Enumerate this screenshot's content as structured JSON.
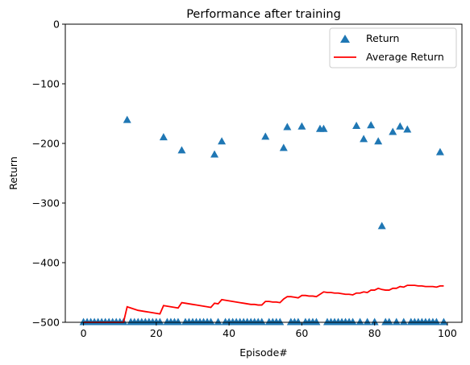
{
  "chart_data": {
    "type": "scatter",
    "title": "Performance after training",
    "xlabel": "Episode#",
    "ylabel": "Return",
    "xlim": [
      -5,
      104
    ],
    "ylim": [
      -500,
      0
    ],
    "xticks": [
      0,
      20,
      40,
      60,
      80,
      100
    ],
    "yticks": [
      -500,
      -400,
      -300,
      -200,
      -100,
      0
    ],
    "xtick_labels": [
      "0",
      "20",
      "40",
      "60",
      "80",
      "100"
    ],
    "ytick_labels": [
      "−500",
      "−400",
      "−300",
      "−200",
      "−100",
      "0"
    ],
    "grid": false,
    "legend_position": "top-right",
    "series": [
      {
        "name": "Return",
        "kind": "scatter",
        "marker": "triangle",
        "color": "#1f77b4",
        "x": [
          0,
          1,
          2,
          3,
          4,
          5,
          6,
          7,
          8,
          9,
          10,
          11,
          12,
          13,
          14,
          15,
          16,
          17,
          18,
          19,
          20,
          21,
          22,
          23,
          24,
          25,
          26,
          27,
          28,
          29,
          30,
          31,
          32,
          33,
          34,
          35,
          36,
          37,
          38,
          39,
          40,
          41,
          42,
          43,
          44,
          45,
          46,
          47,
          48,
          49,
          50,
          51,
          52,
          53,
          54,
          55,
          56,
          57,
          58,
          59,
          60,
          61,
          62,
          63,
          64,
          65,
          66,
          67,
          68,
          69,
          70,
          71,
          72,
          73,
          74,
          75,
          76,
          77,
          78,
          79,
          80,
          81,
          82,
          83,
          84,
          85,
          86,
          87,
          88,
          89,
          90,
          91,
          92,
          93,
          94,
          95,
          96,
          97,
          98,
          99
        ],
        "y": [
          -500,
          -500,
          -500,
          -500,
          -500,
          -500,
          -500,
          -500,
          -500,
          -500,
          -500,
          -500,
          -161,
          -500,
          -500,
          -500,
          -500,
          -500,
          -500,
          -500,
          -500,
          -500,
          -190,
          -500,
          -500,
          -500,
          -500,
          -212,
          -500,
          -500,
          -500,
          -500,
          -500,
          -500,
          -500,
          -500,
          -219,
          -500,
          -197,
          -500,
          -500,
          -500,
          -500,
          -500,
          -500,
          -500,
          -500,
          -500,
          -500,
          -500,
          -189,
          -500,
          -500,
          -500,
          -500,
          -208,
          -173,
          -500,
          -500,
          -500,
          -172,
          -500,
          -500,
          -500,
          -500,
          -176,
          -176,
          -500,
          -500,
          -500,
          -500,
          -500,
          -500,
          -500,
          -500,
          -171,
          -500,
          -193,
          -500,
          -170,
          -500,
          -197,
          -339,
          -500,
          -500,
          -181,
          -500,
          -172,
          -500,
          -177,
          -500,
          -500,
          -500,
          -500,
          -500,
          -500,
          -500,
          -500,
          -215,
          -500
        ]
      },
      {
        "name": "Average Return",
        "kind": "line",
        "color": "#ff0000",
        "x": [
          0,
          1,
          2,
          3,
          4,
          5,
          6,
          7,
          8,
          9,
          10,
          11,
          12,
          13,
          14,
          15,
          16,
          17,
          18,
          19,
          20,
          21,
          22,
          23,
          24,
          25,
          26,
          27,
          28,
          29,
          30,
          31,
          32,
          33,
          34,
          35,
          36,
          37,
          38,
          39,
          40,
          41,
          42,
          43,
          44,
          45,
          46,
          47,
          48,
          49,
          50,
          51,
          52,
          53,
          54,
          55,
          56,
          57,
          58,
          59,
          60,
          61,
          62,
          63,
          64,
          65,
          66,
          67,
          68,
          69,
          70,
          71,
          72,
          73,
          74,
          75,
          76,
          77,
          78,
          79,
          80,
          81,
          82,
          83,
          84,
          85,
          86,
          87,
          88,
          89,
          90,
          91,
          92,
          93,
          94,
          95,
          96,
          97,
          98,
          99
        ],
        "y": [
          -500,
          -500,
          -500,
          -500,
          -500,
          -500,
          -500,
          -500,
          -500,
          -500,
          -500,
          -500,
          -474,
          -476,
          -478,
          -480,
          -481,
          -482,
          -483,
          -484,
          -485,
          -486,
          -472,
          -473,
          -474,
          -475,
          -476,
          -467,
          -468,
          -469,
          -470,
          -471,
          -472,
          -473,
          -474,
          -475,
          -468,
          -469,
          -462,
          -463,
          -464,
          -465,
          -466,
          -467,
          -468,
          -469,
          -470,
          -470,
          -471,
          -471,
          -465,
          -465,
          -466,
          -466,
          -467,
          -461,
          -457,
          -457,
          -458,
          -459,
          -455,
          -455,
          -456,
          -456,
          -457,
          -453,
          -449,
          -450,
          -450,
          -451,
          -451,
          -452,
          -453,
          -453,
          -454,
          -451,
          -451,
          -449,
          -450,
          -446,
          -446,
          -443,
          -445,
          -446,
          -446,
          -443,
          -443,
          -440,
          -441,
          -438,
          -438,
          -438,
          -439,
          -439,
          -440,
          -440,
          -440,
          -441,
          -439,
          -439
        ]
      }
    ]
  }
}
